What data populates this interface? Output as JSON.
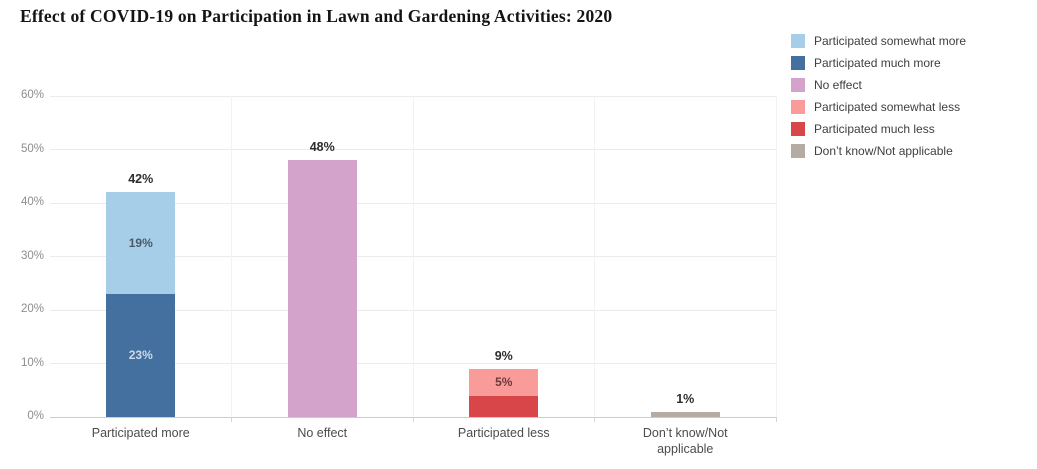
{
  "title": "Effect of COVID-19 on Participation in Lawn and Gardening Activities: 2020",
  "legend": {
    "items": [
      {
        "label": "Participated somewhat more",
        "color": "#a7cee9"
      },
      {
        "label": "Participated much more",
        "color": "#44709f"
      },
      {
        "label": "No effect",
        "color": "#d3a3cb"
      },
      {
        "label": "Participated somewhat less",
        "color": "#f99b98"
      },
      {
        "label": "Participated much less",
        "color": "#d8464a"
      },
      {
        "label": "Don’t know/Not applicable",
        "color": "#b5aba3"
      }
    ]
  },
  "chart_data": {
    "type": "bar",
    "stacked": true,
    "title": "Effect of COVID-19 on Participation in Lawn and Gardening Activities: 2020",
    "categories": [
      "Participated more",
      "No effect",
      "Participated less",
      "Don’t know/Not applicable"
    ],
    "series": [
      {
        "name": "Participated somewhat more",
        "color": "#a7cee9",
        "values": [
          19,
          0,
          0,
          0
        ]
      },
      {
        "name": "Participated much more",
        "color": "#44709f",
        "values": [
          23,
          0,
          0,
          0
        ]
      },
      {
        "name": "No effect",
        "color": "#d3a3cb",
        "values": [
          0,
          48,
          0,
          0
        ]
      },
      {
        "name": "Participated somewhat less",
        "color": "#f99b98",
        "values": [
          0,
          0,
          5,
          0
        ]
      },
      {
        "name": "Participated much less",
        "color": "#d8464a",
        "values": [
          0,
          0,
          4,
          0
        ]
      },
      {
        "name": "Don’t know/Not applicable",
        "color": "#b5aba3",
        "values": [
          0,
          0,
          0,
          1
        ]
      }
    ],
    "bars": [
      {
        "category": "Participated more",
        "total": 42,
        "total_label": "42%",
        "segments": [
          {
            "name": "Participated somewhat more",
            "value": 19,
            "label": "19%",
            "color": "#a7cee9",
            "label_color": "#4a5a68"
          },
          {
            "name": "Participated much more",
            "value": 23,
            "label": "23%",
            "color": "#44709f",
            "label_color": "#ccd9e7"
          }
        ]
      },
      {
        "category": "No effect",
        "total": 48,
        "total_label": "48%",
        "segments": [
          {
            "name": "No effect",
            "value": 48,
            "label": "",
            "color": "#d3a3cb",
            "label_color": ""
          }
        ]
      },
      {
        "category": "Participated less",
        "total": 9,
        "total_label": "9%",
        "segments": [
          {
            "name": "Participated somewhat less",
            "value": 5,
            "label": "5%",
            "color": "#f99b98",
            "label_color": "#6e3a3c"
          },
          {
            "name": "Participated much less",
            "value": 4,
            "label": "",
            "color": "#d8464a",
            "label_color": ""
          }
        ]
      },
      {
        "category": "Don’t know/Not applicable",
        "total": 1,
        "total_label": "1%",
        "segments": [
          {
            "name": "Don’t know/Not applicable",
            "value": 1,
            "label": "",
            "color": "#b5aba3",
            "label_color": ""
          }
        ]
      }
    ],
    "ylim": [
      0,
      60
    ],
    "yticks": [
      {
        "value": 60,
        "label": "60%"
      },
      {
        "value": 50,
        "label": "50%"
      },
      {
        "value": 40,
        "label": "40%"
      },
      {
        "value": 30,
        "label": "30%"
      },
      {
        "value": 20,
        "label": "20%"
      },
      {
        "value": 10,
        "label": "10%"
      },
      {
        "value": 0,
        "label": "0%"
      }
    ],
    "grid": true,
    "legend_position": "top-right"
  }
}
